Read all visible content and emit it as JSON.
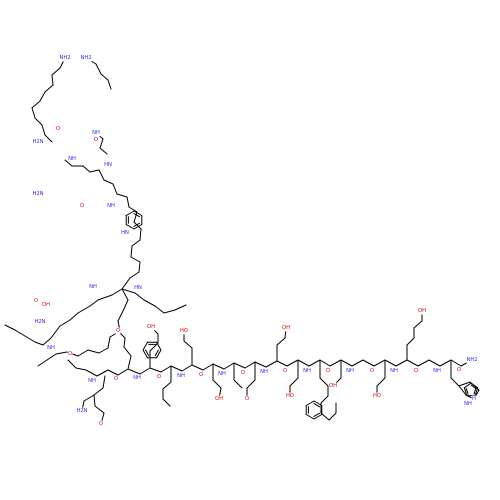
{
  "colors": {
    "background": "#ffffff",
    "bond": "#000000",
    "oxygen": "#e00000",
    "nitrogen": "#2a2aff",
    "carbon": "#000000"
  },
  "labels": {
    "O": "O",
    "OH": "OH",
    "HO": "HO",
    "NH": "NH",
    "HN": "HN",
    "NH2": "NH2",
    "H2N": "H2N",
    "H": "H"
  }
}
